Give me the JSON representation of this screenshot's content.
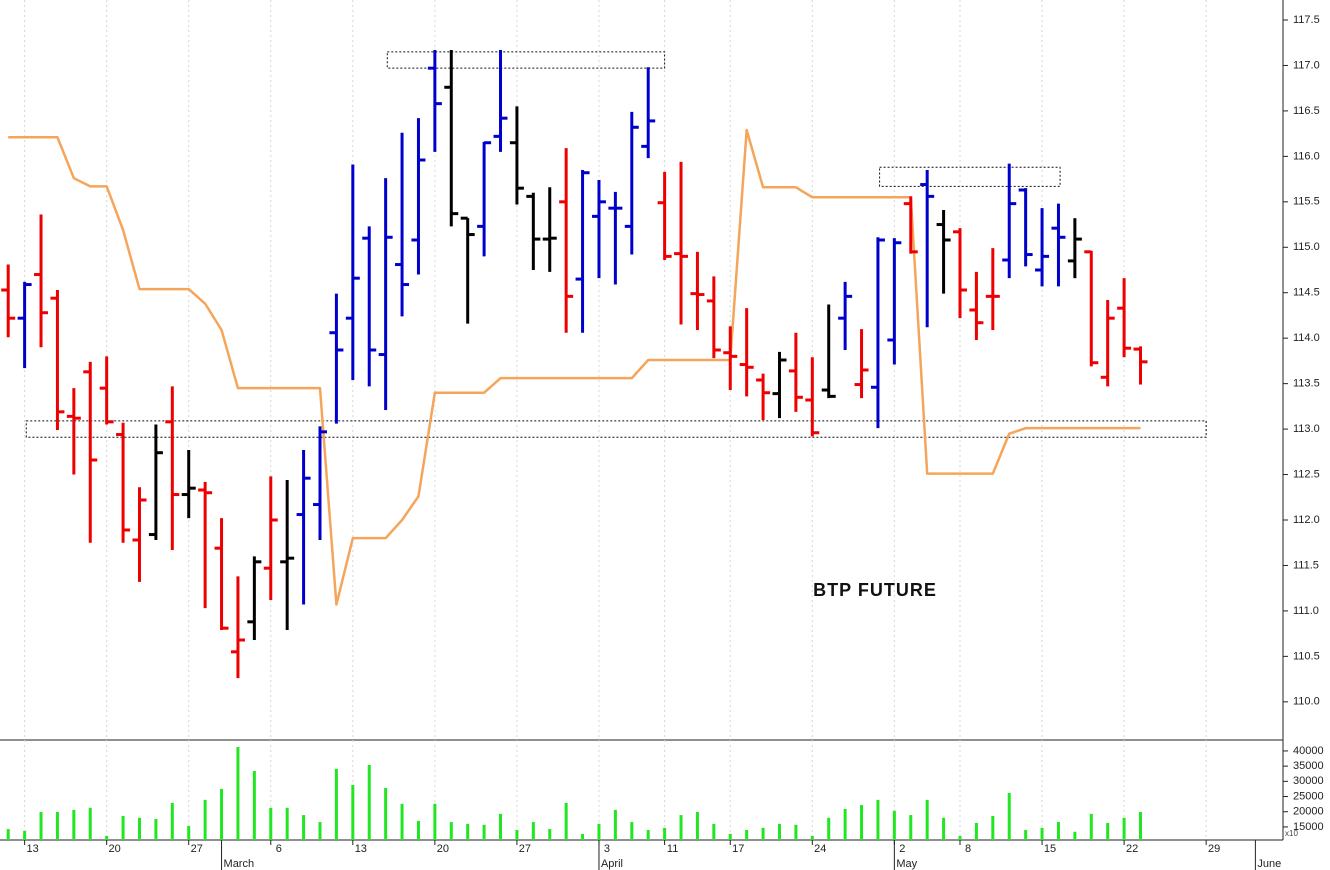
{
  "chart_data": [
    {
      "type": "ohlc",
      "title": "BTP FUTURE",
      "x": [
        0,
        1,
        2,
        3,
        4,
        5,
        6,
        7,
        8,
        9,
        10,
        11,
        12,
        13,
        14,
        15,
        16,
        17,
        18,
        19,
        20,
        21,
        22,
        23,
        24,
        25,
        26,
        27,
        28,
        29,
        30,
        31,
        32,
        33,
        34,
        35,
        36,
        37,
        38,
        39,
        40,
        41,
        42,
        43,
        44,
        45,
        46,
        47,
        48,
        49,
        50,
        51,
        52,
        53,
        54,
        55,
        56,
        57,
        58,
        59,
        60,
        61,
        62,
        63,
        64,
        65,
        66,
        67,
        68,
        69
      ],
      "open": [
        114.53,
        114.22,
        114.7,
        114.44,
        113.14,
        113.63,
        113.45,
        112.94,
        111.78,
        111.84,
        113.08,
        112.28,
        112.33,
        111.69,
        110.55,
        110.88,
        111.47,
        111.54,
        112.06,
        112.17,
        114.06,
        114.22,
        115.1,
        113.82,
        114.81,
        115.08,
        116.97,
        116.76,
        115.32,
        115.23,
        116.22,
        116.15,
        115.56,
        115.09,
        115.5,
        114.65,
        115.34,
        115.43,
        115.23,
        116.11,
        115.49,
        114.93,
        114.49,
        114.41,
        113.84,
        113.71,
        113.54,
        113.39,
        113.64,
        113.32,
        113.43,
        114.22,
        113.49,
        113.46,
        113.98,
        115.48,
        115.69,
        115.25,
        115.17,
        114.31,
        114.46,
        114.86,
        115.63,
        114.75,
        115.21,
        114.85,
        114.95,
        113.57,
        114.33,
        113.88
      ],
      "high": [
        114.81,
        114.62,
        115.36,
        114.53,
        113.45,
        113.74,
        113.8,
        113.07,
        112.36,
        113.05,
        113.47,
        112.77,
        112.42,
        112.02,
        111.38,
        111.6,
        112.48,
        112.44,
        112.77,
        113.03,
        114.49,
        115.91,
        115.23,
        115.76,
        116.26,
        116.42,
        117.17,
        117.17,
        115.32,
        116.16,
        117.17,
        116.55,
        115.6,
        115.66,
        116.09,
        115.85,
        115.74,
        115.61,
        116.49,
        116.98,
        115.83,
        115.94,
        114.95,
        114.68,
        114.13,
        114.33,
        113.61,
        113.85,
        114.06,
        113.79,
        114.37,
        114.62,
        114.1,
        115.11,
        115.1,
        115.56,
        115.85,
        115.41,
        115.21,
        114.73,
        114.99,
        115.92,
        115.65,
        115.43,
        115.48,
        115.32,
        114.96,
        114.42,
        114.66,
        113.91
      ],
      "low": [
        114.01,
        113.67,
        113.9,
        112.99,
        112.5,
        111.75,
        113.05,
        111.75,
        111.32,
        111.78,
        111.67,
        112.02,
        111.03,
        110.79,
        110.26,
        110.68,
        111.12,
        110.79,
        111.07,
        111.78,
        113.06,
        113.54,
        113.47,
        113.21,
        114.24,
        114.7,
        116.05,
        115.23,
        114.16,
        114.9,
        116.05,
        115.47,
        114.75,
        114.73,
        114.06,
        114.06,
        114.66,
        114.59,
        114.92,
        115.98,
        114.86,
        114.15,
        114.09,
        113.78,
        113.43,
        113.36,
        113.1,
        113.12,
        113.19,
        112.92,
        113.34,
        113.87,
        113.34,
        113.01,
        113.71,
        114.93,
        114.12,
        114.49,
        114.22,
        113.98,
        114.09,
        114.66,
        114.79,
        114.57,
        114.57,
        114.66,
        113.69,
        113.47,
        113.79,
        113.49
      ],
      "close": [
        114.22,
        114.59,
        114.28,
        113.19,
        113.12,
        112.66,
        113.08,
        111.89,
        112.22,
        112.74,
        112.28,
        112.35,
        112.3,
        110.81,
        110.68,
        111.54,
        112.0,
        111.58,
        112.46,
        112.97,
        113.87,
        114.66,
        113.87,
        115.11,
        114.59,
        115.96,
        116.58,
        115.37,
        115.14,
        116.15,
        116.42,
        115.65,
        115.09,
        115.1,
        114.46,
        115.82,
        115.5,
        115.43,
        116.32,
        116.39,
        114.9,
        114.9,
        114.48,
        113.87,
        113.8,
        113.68,
        113.4,
        113.76,
        113.35,
        112.96,
        113.36,
        114.46,
        113.65,
        115.08,
        115.05,
        114.95,
        115.56,
        115.08,
        114.53,
        114.17,
        114.46,
        115.48,
        114.92,
        114.9,
        115.11,
        115.09,
        113.73,
        114.22,
        113.89,
        113.74
      ],
      "colors": [
        "#ee0000",
        "#0000cc",
        "#ee0000",
        "#ee0000",
        "#ee0000",
        "#ee0000",
        "#ee0000",
        "#ee0000",
        "#ee0000",
        "#000000",
        "#ee0000",
        "#000000",
        "#ee0000",
        "#ee0000",
        "#ee0000",
        "#000000",
        "#ee0000",
        "#000000",
        "#0000cc",
        "#0000cc",
        "#0000cc",
        "#0000cc",
        "#0000cc",
        "#0000cc",
        "#0000cc",
        "#0000cc",
        "#0000cc",
        "#000000",
        "#000000",
        "#0000cc",
        "#0000cc",
        "#000000",
        "#000000",
        "#000000",
        "#ee0000",
        "#0000cc",
        "#0000cc",
        "#0000cc",
        "#0000cc",
        "#0000cc",
        "#ee0000",
        "#ee0000",
        "#ee0000",
        "#ee0000",
        "#ee0000",
        "#ee0000",
        "#ee0000",
        "#000000",
        "#ee0000",
        "#ee0000",
        "#000000",
        "#0000cc",
        "#ee0000",
        "#0000cc",
        "#0000cc",
        "#ee0000",
        "#0000cc",
        "#000000",
        "#ee0000",
        "#ee0000",
        "#ee0000",
        "#0000cc",
        "#0000cc",
        "#0000cc",
        "#0000cc",
        "#000000",
        "#ee0000",
        "#ee0000",
        "#ee0000",
        "#ee0000"
      ],
      "lines": [
        {
          "color": "#f5a55a",
          "values": [
            116.21,
            116.21,
            116.21,
            116.21,
            115.76,
            115.67,
            115.67,
            115.19,
            114.54,
            114.54,
            114.54,
            114.54,
            114.38,
            114.09,
            113.45,
            113.45,
            113.45,
            113.45,
            113.45,
            113.45,
            111.07,
            111.8,
            111.8,
            111.8,
            112.0,
            112.26,
            113.4,
            113.4,
            113.4,
            113.4,
            113.56,
            113.56,
            113.56,
            113.56,
            113.56,
            113.56,
            113.56,
            113.56,
            113.56,
            113.76,
            113.76,
            113.76,
            113.76,
            113.76,
            113.76,
            116.29,
            115.66,
            115.66,
            115.66,
            115.55,
            115.55,
            115.55,
            115.55,
            115.55,
            115.55,
            115.55,
            112.51,
            112.51,
            112.51,
            112.51,
            112.51,
            112.95,
            113.01,
            113.01,
            113.01,
            113.01,
            113.01,
            113.01,
            113.01,
            113.01
          ]
        }
      ],
      "zones": [
        {
          "x": [
            23.1,
            40
          ],
          "y": [
            116.97,
            117.15
          ]
        },
        {
          "x": [
            53.1,
            64.1
          ],
          "y": [
            115.67,
            115.88
          ]
        },
        {
          "x": [
            1.1,
            73
          ],
          "y": [
            112.91,
            113.09
          ]
        }
      ],
      "xlim": [
        -0.5,
        77.5
      ],
      "ylim": [
        109.58,
        117.72
      ],
      "yticks": [
        {
          "value": 110,
          "label": "110.0"
        },
        110.5,
        {
          "value": 111,
          "label": "111.0"
        },
        111.5,
        {
          "value": 112,
          "label": "112.0"
        },
        112.5,
        {
          "value": 113,
          "label": "113.0"
        },
        113.5,
        {
          "value": 114,
          "label": "114.0"
        },
        114.5,
        {
          "value": 115,
          "label": "115.0"
        },
        115.5,
        {
          "value": 116,
          "label": "116.0"
        },
        116.5,
        {
          "value": 117,
          "label": "117.0"
        },
        117.5
      ],
      "xticks": [
        {
          "value": 1,
          "label": "13"
        },
        {
          "value": 6,
          "label": "20"
        },
        {
          "value": 11,
          "label": "27"
        },
        {
          "value": 16,
          "label": "6"
        },
        {
          "value": 21,
          "label": "13"
        },
        {
          "value": 26,
          "label": "20"
        },
        {
          "value": 31,
          "label": "27"
        },
        {
          "value": 36,
          "label": "3"
        },
        {
          "value": 40,
          "label": "11"
        },
        {
          "value": 44,
          "label": "17"
        },
        {
          "value": 49,
          "label": "24"
        },
        {
          "value": 54,
          "label": "2"
        },
        {
          "value": 58,
          "label": "8"
        },
        {
          "value": 63,
          "label": "15"
        },
        {
          "value": 68,
          "label": "22"
        },
        {
          "value": 73,
          "label": "29"
        }
      ],
      "month_ticks": [
        {
          "value": 13,
          "label": "March"
        },
        {
          "value": 36,
          "label": "April"
        },
        {
          "value": 54,
          "label": "May"
        },
        {
          "value": 76,
          "label": "June"
        }
      ],
      "grid": true
    },
    {
      "type": "bar",
      "unit_label": "x10",
      "x": [
        0,
        1,
        2,
        3,
        4,
        5,
        6,
        7,
        8,
        9,
        10,
        11,
        12,
        13,
        14,
        15,
        16,
        17,
        18,
        19,
        20,
        21,
        22,
        23,
        24,
        25,
        26,
        27,
        28,
        29,
        30,
        31,
        32,
        33,
        34,
        35,
        36,
        37,
        38,
        39,
        40,
        41,
        42,
        43,
        44,
        45,
        46,
        47,
        48,
        49,
        50,
        51,
        52,
        53,
        54,
        55,
        56,
        57,
        58,
        59,
        60,
        61,
        62,
        63,
        64,
        65,
        66,
        67,
        68,
        69
      ],
      "values": [
        14300,
        13700,
        19900,
        19900,
        20600,
        21300,
        12000,
        18600,
        18000,
        17600,
        22900,
        15300,
        23900,
        27500,
        41300,
        33400,
        21300,
        21300,
        18900,
        16600,
        34100,
        28800,
        35400,
        27800,
        22600,
        17000,
        22600,
        16600,
        16000,
        15700,
        19300,
        14000,
        16600,
        14300,
        22900,
        12700,
        16000,
        20600,
        16600,
        14000,
        14700,
        18900,
        19900,
        16000,
        12700,
        14000,
        14700,
        16000,
        15700,
        12000,
        18000,
        20900,
        22200,
        23900,
        20300,
        18900,
        23900,
        18000,
        12000,
        16300,
        18600,
        26200,
        14000,
        14700,
        16600,
        13400,
        19300,
        16300,
        18000,
        19900
      ],
      "color": "#22e622",
      "ylim": [
        10700,
        43600
      ],
      "yticks": [
        15000,
        20000,
        25000,
        30000,
        35000,
        40000
      ]
    }
  ]
}
